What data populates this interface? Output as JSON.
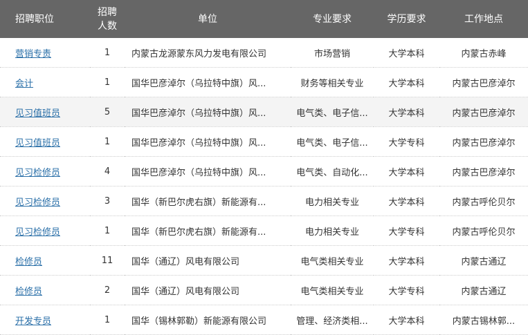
{
  "headers": {
    "position": "招聘职位",
    "count_line1": "招聘",
    "count_line2": "人数",
    "unit": "单位",
    "major": "专业要求",
    "education": "学历要求",
    "location": "工作地点"
  },
  "rows": [
    {
      "position": "营销专责",
      "count": "1",
      "unit": "内蒙古龙源蒙东风力发电有限公司",
      "major": "市场营销",
      "education": "大学本科",
      "location": "内蒙古赤峰"
    },
    {
      "position": "会计",
      "count": "1",
      "unit": "国华巴彦淖尔（乌拉特中旗）风...",
      "major": "财务等相关专业",
      "education": "大学本科",
      "location": "内蒙古巴彦淖尔"
    },
    {
      "position": "见习值班员",
      "count": "5",
      "unit": "国华巴彦淖尔（乌拉特中旗）风...",
      "major": "电气类、电子信...",
      "education": "大学本科",
      "location": "内蒙古巴彦淖尔"
    },
    {
      "position": "见习值班员",
      "count": "1",
      "unit": "国华巴彦淖尔（乌拉特中旗）风...",
      "major": "电气类、电子信...",
      "education": "大学专科",
      "location": "内蒙古巴彦淖尔"
    },
    {
      "position": "见习检修员",
      "count": "4",
      "unit": "国华巴彦淖尔（乌拉特中旗）风...",
      "major": "电气类、自动化...",
      "education": "大学本科",
      "location": "内蒙古巴彦淖尔"
    },
    {
      "position": "见习检修员",
      "count": "3",
      "unit": "国华（新巴尔虎右旗）新能源有...",
      "major": "电力相关专业",
      "education": "大学本科",
      "location": "内蒙古呼伦贝尔"
    },
    {
      "position": "见习检修员",
      "count": "1",
      "unit": "国华（新巴尔虎右旗）新能源有...",
      "major": "电力相关专业",
      "education": "大学专科",
      "location": "内蒙古呼伦贝尔"
    },
    {
      "position": "检修员",
      "count": "11",
      "unit": "国华（通辽）风电有限公司",
      "major": "电气类相关专业",
      "education": "大学本科",
      "location": "内蒙古通辽"
    },
    {
      "position": "检修员",
      "count": "2",
      "unit": "国华（通辽）风电有限公司",
      "major": "电气类相关专业",
      "education": "大学专科",
      "location": "内蒙古通辽"
    },
    {
      "position": "开发专员",
      "count": "1",
      "unit": "国华（锡林郭勒）新能源有限公司",
      "major": "管理、经济类相...",
      "education": "大学本科",
      "location": "内蒙古锡林郭..."
    }
  ],
  "colors": {
    "header_bg": "#666666",
    "link": "#2a6fa8",
    "highlight_row": "#f4f4f4"
  }
}
